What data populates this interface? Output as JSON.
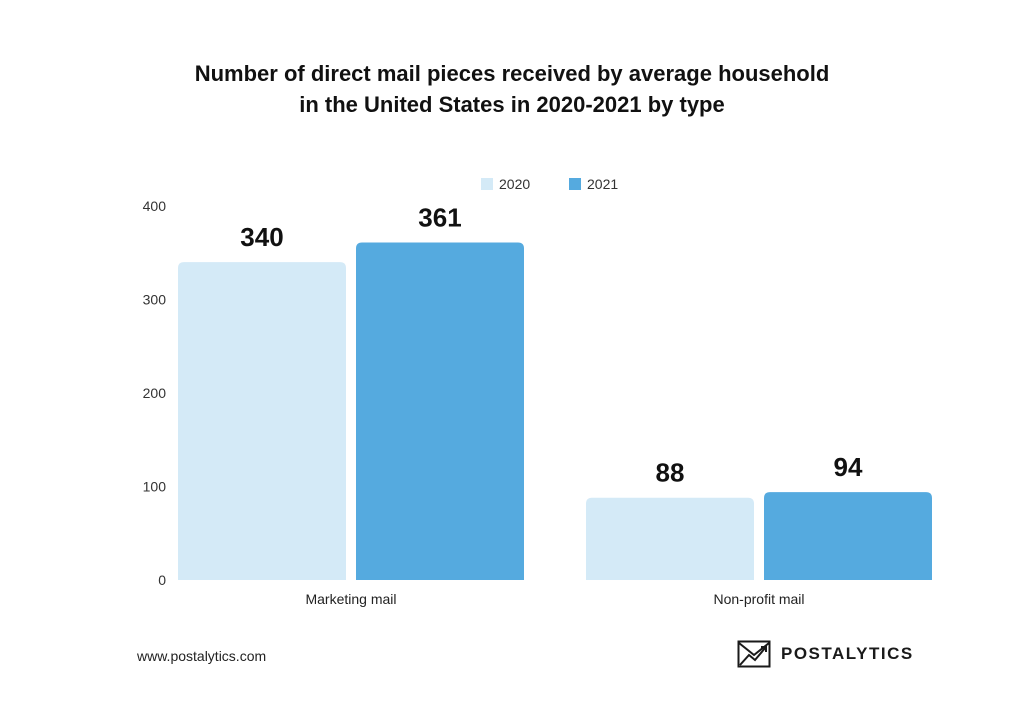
{
  "chart_data": {
    "type": "bar",
    "title_line1": "Number of direct mail pieces received by average household",
    "title_line2": "in the United States in 2020-2021 by type",
    "categories": [
      "Marketing mail",
      "Non-profit mail"
    ],
    "series": [
      {
        "name": "2020",
        "values": [
          340,
          88
        ],
        "color": "#d4eaf7"
      },
      {
        "name": "2021",
        "values": [
          361,
          94
        ],
        "color": "#55aadf"
      }
    ],
    "ylim": [
      0,
      400
    ],
    "yticks": [
      0,
      100,
      200,
      300,
      400
    ],
    "legend_position": "top-right",
    "grid": false
  },
  "footer": {
    "url": "www.postalytics.com",
    "brand": "POSTALYTICS",
    "brand_icon": "envelope-trend-icon"
  }
}
